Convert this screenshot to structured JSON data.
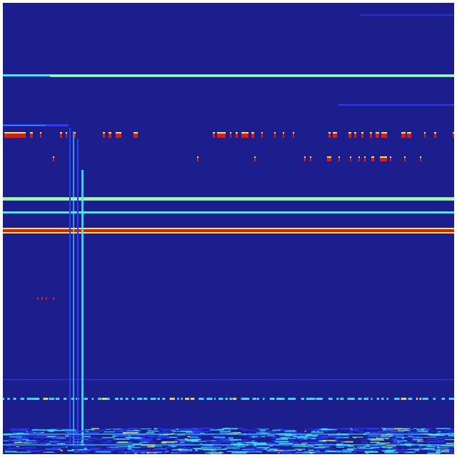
{
  "image": {
    "kind": "spectrogram",
    "colormap": "jet",
    "colors": {
      "background": "#1c1e8e",
      "dark_blue": "#2a3cff",
      "cyan": "#3cf0ff",
      "yellow": "#f8f040",
      "red": "#e01818",
      "frame": "#ffffff"
    }
  }
}
